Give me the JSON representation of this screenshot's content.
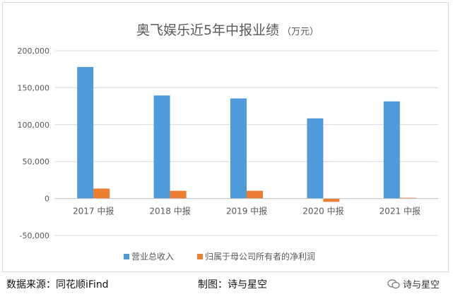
{
  "colors": {
    "series1": "#4f9ad8",
    "series2": "#ed7d31",
    "grid": "#d9d9d9",
    "text": "#595959"
  },
  "chart_data": {
    "type": "bar",
    "title": "奥飞娱乐近5年中报业绩",
    "title_unit": "（万元）",
    "categories": [
      "2017 中报",
      "2018 中报",
      "2019 中报",
      "2020 中报",
      "2021 中报"
    ],
    "series": [
      {
        "name": "营业总收入",
        "values": [
          178000,
          139500,
          135500,
          108500,
          131500
        ]
      },
      {
        "name": "归属于母公司所有者的净利润",
        "values": [
          13500,
          10500,
          10500,
          -4500,
          1000
        ]
      }
    ],
    "ylim": [
      -50000,
      200000
    ],
    "yticks": [
      200000,
      150000,
      100000,
      50000,
      0,
      -50000
    ],
    "ytick_labels": [
      "200,000",
      "150,000",
      "100,000",
      "50,000",
      "0",
      "-50,000"
    ],
    "grid": true,
    "legend_position": "bottom"
  },
  "footer": {
    "source": "数据来源：同花顺iFind",
    "maker": "制图：诗与星空",
    "watermark": "诗与星空"
  }
}
